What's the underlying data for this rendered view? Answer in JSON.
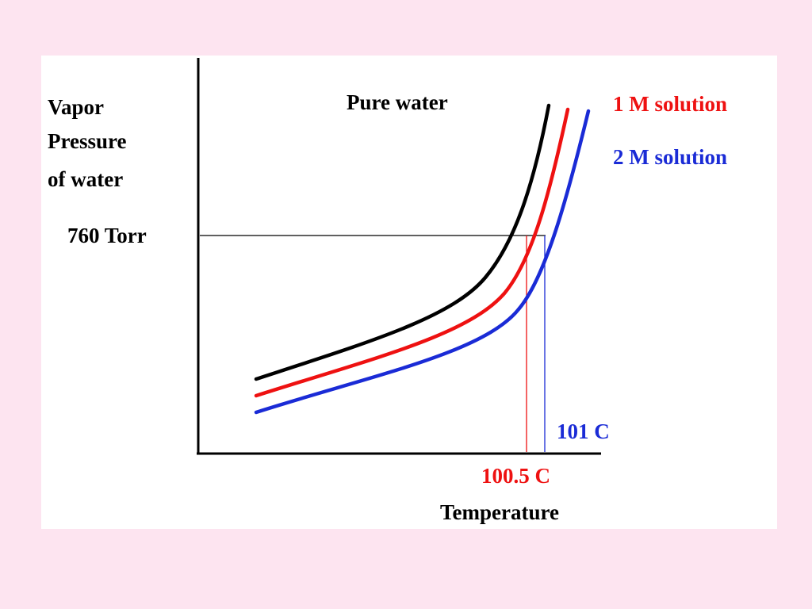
{
  "slide": {
    "background": "#fde4f0",
    "panel_background": "#ffffff"
  },
  "chart_data": {
    "type": "line",
    "ylabel_lines": [
      "Vapor",
      "Pressure",
      "of water"
    ],
    "xlabel": "Temperature",
    "grid": false,
    "legend_placement": "top-right",
    "reference_line": {
      "label": "760 Torr"
    },
    "boiling_points": [
      {
        "label": "100.5 C",
        "series": "1 M solution",
        "color": "#ee1111"
      },
      {
        "label": "101 C",
        "series": "2 M solution",
        "color": "#1a2bd6"
      }
    ],
    "series": [
      {
        "name": "Pure water",
        "color": "#000000"
      },
      {
        "name": "1 M solution",
        "color": "#ee1111"
      },
      {
        "name": "2 M solution",
        "color": "#1a2bd6"
      }
    ]
  }
}
